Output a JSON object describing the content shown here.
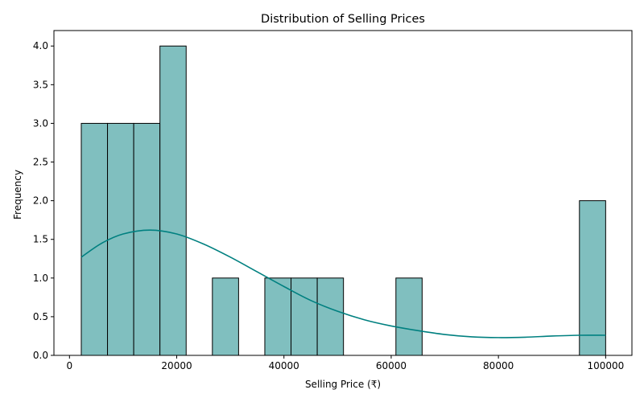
{
  "chart_data": {
    "type": "bar",
    "title": "Distribution of Selling Prices",
    "xlabel": "Selling Price (₹)",
    "ylabel": "Frequency",
    "xlim": [
      -2900,
      104900
    ],
    "ylim": [
      0,
      4.2
    ],
    "x_ticks": [
      0,
      20000,
      40000,
      60000,
      80000,
      100000
    ],
    "y_ticks": [
      0.0,
      0.5,
      1.0,
      1.5,
      2.0,
      2.5,
      3.0,
      3.5,
      4.0
    ],
    "x_tick_labels": [
      "0",
      "20000",
      "40000",
      "60000",
      "80000",
      "100000"
    ],
    "y_tick_labels": [
      "0.0",
      "0.5",
      "1.0",
      "1.5",
      "2.0",
      "2.5",
      "3.0",
      "3.5",
      "4.0"
    ],
    "grid": false,
    "bins": {
      "start": 2200,
      "width": 4890,
      "counts": [
        3,
        3,
        3,
        4,
        0,
        1,
        0,
        1,
        1,
        1,
        0,
        0,
        1,
        0,
        0,
        0,
        0,
        0,
        0,
        2
      ]
    },
    "kde": {
      "x": [
        2200,
        6000,
        10000,
        15000,
        20000,
        25000,
        30000,
        35000,
        40000,
        45000,
        50000,
        55000,
        60000,
        65000,
        70000,
        75000,
        80000,
        85000,
        90000,
        95000,
        100000
      ],
      "y": [
        1.27,
        1.45,
        1.57,
        1.62,
        1.57,
        1.44,
        1.27,
        1.08,
        0.89,
        0.71,
        0.57,
        0.46,
        0.38,
        0.32,
        0.27,
        0.24,
        0.23,
        0.235,
        0.25,
        0.26,
        0.26
      ]
    },
    "colors": {
      "bar_fill": "#80bfbf",
      "bar_edge": "#000000",
      "kde_line": "#008080",
      "axis": "#000000"
    }
  }
}
